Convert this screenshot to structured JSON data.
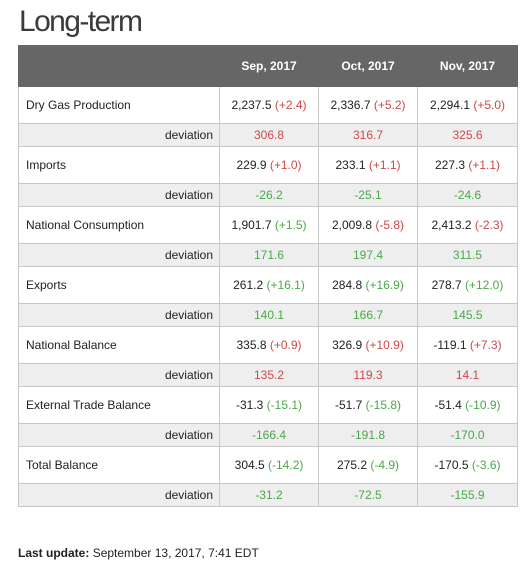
{
  "title": "Long-term",
  "columns": [
    "",
    "Sep, 2017",
    "Oct, 2017",
    "Nov, 2017"
  ],
  "deviation_label": "deviation",
  "colors": {
    "header_bg": "#666666",
    "positive_change": "#d04848",
    "negative_change": "#4aa84a",
    "deviation_row_bg": "#eeeeee"
  },
  "rows": [
    {
      "label": "Dry Gas Production",
      "values": [
        {
          "value": "2,237.5",
          "change": "(+2.4)",
          "dir": "up"
        },
        {
          "value": "2,336.7",
          "change": "(+5.2)",
          "dir": "up"
        },
        {
          "value": "2,294.1",
          "change": "(+5.0)",
          "dir": "up"
        }
      ],
      "deviation": [
        {
          "value": "306.8",
          "dir": "up"
        },
        {
          "value": "316.7",
          "dir": "up"
        },
        {
          "value": "325.6",
          "dir": "up"
        }
      ]
    },
    {
      "label": "Imports",
      "values": [
        {
          "value": "229.9",
          "change": "(+1.0)",
          "dir": "up"
        },
        {
          "value": "233.1",
          "change": "(+1.1)",
          "dir": "up"
        },
        {
          "value": "227.3",
          "change": "(+1.1)",
          "dir": "up"
        }
      ],
      "deviation": [
        {
          "value": "-26.2",
          "dir": "down"
        },
        {
          "value": "-25.1",
          "dir": "down"
        },
        {
          "value": "-24.6",
          "dir": "down"
        }
      ]
    },
    {
      "label": "National Consumption",
      "values": [
        {
          "value": "1,901.7",
          "change": "(+1.5)",
          "dir": "down"
        },
        {
          "value": "2,009.8",
          "change": "(-5.8)",
          "dir": "up"
        },
        {
          "value": "2,413.2",
          "change": "(-2.3)",
          "dir": "up"
        }
      ],
      "deviation": [
        {
          "value": "171.6",
          "dir": "down"
        },
        {
          "value": "197.4",
          "dir": "down"
        },
        {
          "value": "311.5",
          "dir": "down"
        }
      ]
    },
    {
      "label": "Exports",
      "values": [
        {
          "value": "261.2",
          "change": "(+16.1)",
          "dir": "down"
        },
        {
          "value": "284.8",
          "change": "(+16.9)",
          "dir": "down"
        },
        {
          "value": "278.7",
          "change": "(+12.0)",
          "dir": "down"
        }
      ],
      "deviation": [
        {
          "value": "140.1",
          "dir": "down"
        },
        {
          "value": "166.7",
          "dir": "down"
        },
        {
          "value": "145.5",
          "dir": "down"
        }
      ]
    },
    {
      "label": "National Balance",
      "values": [
        {
          "value": "335.8",
          "change": "(+0.9)",
          "dir": "up"
        },
        {
          "value": "326.9",
          "change": "(+10.9)",
          "dir": "up"
        },
        {
          "value": "-119.1",
          "change": "(+7.3)",
          "dir": "up"
        }
      ],
      "deviation": [
        {
          "value": "135.2",
          "dir": "up"
        },
        {
          "value": "119.3",
          "dir": "up"
        },
        {
          "value": "14.1",
          "dir": "up"
        }
      ]
    },
    {
      "label": "External Trade Balance",
      "values": [
        {
          "value": "-31.3",
          "change": "(-15.1)",
          "dir": "down"
        },
        {
          "value": "-51.7",
          "change": "(-15.8)",
          "dir": "down"
        },
        {
          "value": "-51.4",
          "change": "(-10.9)",
          "dir": "down"
        }
      ],
      "deviation": [
        {
          "value": "-166.4",
          "dir": "down"
        },
        {
          "value": "-191.8",
          "dir": "down"
        },
        {
          "value": "-170.0",
          "dir": "down"
        }
      ]
    },
    {
      "label": "Total Balance",
      "values": [
        {
          "value": "304.5",
          "change": "(-14.2)",
          "dir": "down"
        },
        {
          "value": "275.2",
          "change": "(-4.9)",
          "dir": "down"
        },
        {
          "value": "-170.5",
          "change": "(-3.6)",
          "dir": "down"
        }
      ],
      "deviation": [
        {
          "value": "-31.2",
          "dir": "down"
        },
        {
          "value": "-72.5",
          "dir": "down"
        },
        {
          "value": "-155.9",
          "dir": "down"
        }
      ]
    }
  ],
  "footer": {
    "label": "Last update:",
    "value": "September 13, 2017, 7:41 EDT"
  }
}
